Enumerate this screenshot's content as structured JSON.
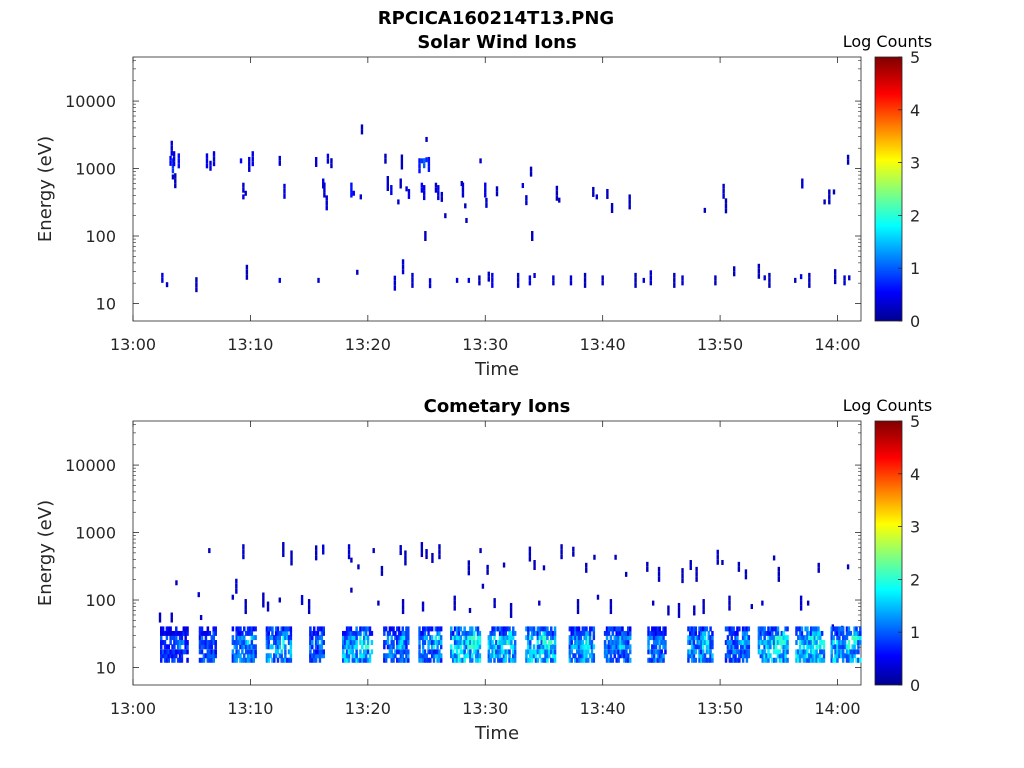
{
  "figure_title": "RPCICA160214T13.PNG",
  "chart_data": [
    {
      "type": "heatmap",
      "title": "Solar Wind Ions",
      "xlabel": "Time",
      "ylabel": "Energy (eV)",
      "x_ticks": [
        "13:00",
        "13:10",
        "13:20",
        "13:30",
        "13:40",
        "13:50",
        "14:00"
      ],
      "y_ticks": [
        "10",
        "100",
        "1000",
        "10000"
      ],
      "x_range_minutes": [
        0,
        62
      ],
      "y_log": true,
      "y_range": [
        5.5,
        45000
      ],
      "colorbar": {
        "label": "Log Counts",
        "ticks": [
          "0",
          "1",
          "2",
          "3",
          "4",
          "5"
        ],
        "range": [
          0,
          5
        ],
        "colormap": "jet"
      },
      "cells": [
        [
          2.5,
          24,
          0.5
        ],
        [
          2.9,
          19,
          0.3
        ],
        [
          3.2,
          1300,
          0.6
        ],
        [
          3.4,
          1100,
          0.9
        ],
        [
          3.5,
          1400,
          0.5
        ],
        [
          3.3,
          2000,
          0.4
        ],
        [
          3.4,
          750,
          0.3
        ],
        [
          3.6,
          660,
          0.3
        ],
        [
          3.9,
          1300,
          0.7
        ],
        [
          5.4,
          19,
          0.3
        ],
        [
          6.3,
          1300,
          0.5
        ],
        [
          6.6,
          1100,
          0.4
        ],
        [
          6.9,
          1400,
          0.5
        ],
        [
          9.2,
          1300,
          0.6
        ],
        [
          9.4,
          520,
          0.4
        ],
        [
          9.4,
          380,
          0.5
        ],
        [
          9.6,
          430,
          0.4
        ],
        [
          9.7,
          29,
          0.3
        ],
        [
          9.9,
          1150,
          0.4
        ],
        [
          10.2,
          1400,
          0.5
        ],
        [
          12.5,
          22,
          0.5
        ],
        [
          12.5,
          1300,
          0.4
        ],
        [
          12.9,
          460,
          0.5
        ],
        [
          15.6,
          1250,
          0.4
        ],
        [
          15.8,
          22,
          0.4
        ],
        [
          16.2,
          600,
          0.5
        ],
        [
          16.3,
          480,
          0.4
        ],
        [
          16.5,
          310,
          0.4
        ],
        [
          16.6,
          1400,
          0.5
        ],
        [
          16.9,
          1200,
          0.3
        ],
        [
          18.6,
          480,
          0.7
        ],
        [
          18.8,
          430,
          0.6
        ],
        [
          19.1,
          29,
          0.3
        ],
        [
          19.4,
          380,
          0.4
        ],
        [
          19.5,
          3800,
          0.3
        ],
        [
          21.5,
          1400,
          0.3
        ],
        [
          21.7,
          600,
          0.4
        ],
        [
          22.0,
          480,
          0.5
        ],
        [
          22.3,
          20,
          0.4
        ],
        [
          22.6,
          320,
          0.4
        ],
        [
          22.8,
          600,
          0.3
        ],
        [
          22.9,
          1250,
          0.3
        ],
        [
          23.0,
          35,
          0.4
        ],
        [
          23.3,
          500,
          0.4
        ],
        [
          23.5,
          420,
          0.5
        ],
        [
          23.8,
          22,
          0.4
        ],
        [
          24.4,
          1100,
          0.7
        ],
        [
          24.6,
          1300,
          0.9
        ],
        [
          24.8,
          1200,
          1.1
        ],
        [
          25.0,
          1350,
          0.8
        ],
        [
          25.2,
          1150,
          0.7
        ],
        [
          24.6,
          520,
          0.6
        ],
        [
          24.8,
          440,
          0.5
        ],
        [
          25.0,
          2700,
          0.3
        ],
        [
          24.9,
          100,
          0.3
        ],
        [
          25.3,
          20,
          0.5
        ],
        [
          25.8,
          520,
          0.4
        ],
        [
          26.0,
          440,
          0.5
        ],
        [
          26.3,
          380,
          0.4
        ],
        [
          26.6,
          200,
          0.3
        ],
        [
          27.6,
          22,
          0.4
        ],
        [
          28.0,
          600,
          0.3
        ],
        [
          28.1,
          480,
          0.4
        ],
        [
          28.3,
          280,
          0.3
        ],
        [
          28.4,
          170,
          0.3
        ],
        [
          28.6,
          22,
          0.5
        ],
        [
          29.5,
          22,
          0.3
        ],
        [
          29.6,
          1300,
          0.4
        ],
        [
          30.0,
          480,
          0.5
        ],
        [
          30.1,
          310,
          0.4
        ],
        [
          30.3,
          25,
          0.3
        ],
        [
          30.6,
          22,
          0.6
        ],
        [
          31.0,
          460,
          0.3
        ],
        [
          32.8,
          22,
          0.4
        ],
        [
          33.2,
          560,
          0.5
        ],
        [
          33.5,
          340,
          0.4
        ],
        [
          33.8,
          22,
          0.6
        ],
        [
          33.9,
          900,
          0.3
        ],
        [
          34.0,
          100,
          0.3
        ],
        [
          34.2,
          26,
          0.4
        ],
        [
          35.8,
          22,
          0.4
        ],
        [
          36.1,
          430,
          0.3
        ],
        [
          36.3,
          340,
          0.3
        ],
        [
          37.3,
          22,
          0.4
        ],
        [
          38.5,
          22,
          0.3
        ],
        [
          39.2,
          450,
          0.3
        ],
        [
          39.5,
          380,
          0.4
        ],
        [
          40.0,
          22,
          0.3
        ],
        [
          40.4,
          420,
          0.3
        ],
        [
          40.8,
          260,
          0.3
        ],
        [
          42.3,
          320,
          0.3
        ],
        [
          42.8,
          22,
          0.3
        ],
        [
          43.5,
          22,
          0.4
        ],
        [
          44.1,
          24,
          0.4
        ],
        [
          46.1,
          22,
          0.3
        ],
        [
          46.8,
          22,
          0.4
        ],
        [
          48.7,
          240,
          0.3
        ],
        [
          49.6,
          22,
          0.3
        ],
        [
          50.3,
          460,
          0.4
        ],
        [
          50.5,
          280,
          0.3
        ],
        [
          51.2,
          30,
          0.3
        ],
        [
          53.3,
          30,
          0.3
        ],
        [
          53.8,
          24,
          0.4
        ],
        [
          54.2,
          22,
          0.3
        ],
        [
          56.4,
          22,
          0.3
        ],
        [
          56.9,
          25,
          0.5
        ],
        [
          57.0,
          600,
          0.4
        ],
        [
          57.6,
          22,
          0.3
        ],
        [
          58.9,
          320,
          0.3
        ],
        [
          59.3,
          380,
          0.3
        ],
        [
          59.7,
          450,
          0.3
        ],
        [
          59.8,
          25,
          0.3
        ],
        [
          60.6,
          22,
          0.4
        ],
        [
          60.9,
          1350,
          0.3
        ],
        [
          61.0,
          24,
          0.3
        ]
      ]
    },
    {
      "type": "heatmap",
      "title": "Cometary Ions",
      "xlabel": "Time",
      "ylabel": "Energy (eV)",
      "x_ticks": [
        "13:00",
        "13:10",
        "13:20",
        "13:30",
        "13:40",
        "13:50",
        "14:00"
      ],
      "y_ticks": [
        "10",
        "100",
        "1000",
        "10000"
      ],
      "x_range_minutes": [
        0,
        62
      ],
      "y_log": true,
      "y_range": [
        5.5,
        45000
      ],
      "colorbar": {
        "label": "Log Counts",
        "ticks": [
          "0",
          "1",
          "2",
          "3",
          "4",
          "5"
        ],
        "range": [
          0,
          5
        ],
        "colormap": "jet"
      },
      "cells": [
        [
          6.5,
          540,
          0.3
        ],
        [
          9.4,
          520,
          0.4
        ],
        [
          12.8,
          560,
          0.3
        ],
        [
          13.5,
          420,
          0.3
        ],
        [
          15.6,
          500,
          0.3
        ],
        [
          16.2,
          560,
          0.4
        ],
        [
          18.4,
          520,
          0.4
        ],
        [
          18.6,
          390,
          0.3
        ],
        [
          19.2,
          310,
          0.3
        ],
        [
          20.5,
          540,
          0.3
        ],
        [
          21.2,
          270,
          0.3
        ],
        [
          22.8,
          550,
          0.3
        ],
        [
          23.2,
          420,
          0.3
        ],
        [
          24.6,
          560,
          0.3
        ],
        [
          25.0,
          480,
          0.3
        ],
        [
          25.5,
          420,
          0.3
        ],
        [
          26.1,
          520,
          0.3
        ],
        [
          28.6,
          300,
          0.3
        ],
        [
          29.6,
          540,
          0.3
        ],
        [
          30.2,
          280,
          0.3
        ],
        [
          31.6,
          330,
          0.3
        ],
        [
          33.8,
          480,
          0.3
        ],
        [
          34.2,
          330,
          0.3
        ],
        [
          35.0,
          300,
          0.3
        ],
        [
          36.5,
          520,
          0.3
        ],
        [
          37.5,
          520,
          0.3
        ],
        [
          38.6,
          300,
          0.3
        ],
        [
          39.3,
          430,
          0.3
        ],
        [
          41.1,
          430,
          0.3
        ],
        [
          42.0,
          240,
          0.3
        ],
        [
          43.8,
          310,
          0.3
        ],
        [
          44.8,
          240,
          0.3
        ],
        [
          46.8,
          230,
          0.3
        ],
        [
          47.5,
          330,
          0.3
        ],
        [
          48.0,
          240,
          0.3
        ],
        [
          49.8,
          430,
          0.4
        ],
        [
          50.2,
          360,
          0.3
        ],
        [
          51.6,
          310,
          0.3
        ],
        [
          52.2,
          240,
          0.3
        ],
        [
          54.6,
          420,
          0.3
        ],
        [
          55.0,
          240,
          0.3
        ],
        [
          58.4,
          300,
          0.3
        ],
        [
          60.9,
          310,
          0.3
        ],
        [
          2.3,
          55,
          0.3
        ],
        [
          3.3,
          55,
          0.3
        ],
        [
          3.7,
          180,
          0.3
        ],
        [
          5.6,
          120,
          0.4
        ],
        [
          5.8,
          55,
          0.3
        ],
        [
          8.5,
          110,
          0.4
        ],
        [
          8.8,
          160,
          0.4
        ],
        [
          9.6,
          80,
          0.3
        ],
        [
          11.1,
          100,
          0.3
        ],
        [
          11.5,
          80,
          0.4
        ],
        [
          12.5,
          100,
          0.3
        ],
        [
          14.4,
          100,
          0.5
        ],
        [
          15.0,
          80,
          0.3
        ],
        [
          18.6,
          140,
          0.3
        ],
        [
          20.9,
          90,
          0.3
        ],
        [
          23.0,
          80,
          0.3
        ],
        [
          24.7,
          80,
          0.4
        ],
        [
          27.4,
          90,
          0.3
        ],
        [
          28.7,
          70,
          0.3
        ],
        [
          29.8,
          160,
          0.3
        ],
        [
          30.8,
          90,
          0.3
        ],
        [
          32.2,
          70,
          0.3
        ],
        [
          34.6,
          90,
          0.3
        ],
        [
          37.9,
          80,
          0.3
        ],
        [
          39.6,
          110,
          0.3
        ],
        [
          40.7,
          80,
          0.3
        ],
        [
          44.3,
          90,
          0.3
        ],
        [
          45.6,
          70,
          0.3
        ],
        [
          46.5,
          70,
          0.3
        ],
        [
          47.8,
          70,
          0.3
        ],
        [
          48.6,
          80,
          0.3
        ],
        [
          50.8,
          90,
          0.3
        ],
        [
          52.7,
          80,
          0.3
        ],
        [
          53.6,
          90,
          0.4
        ],
        [
          56.9,
          90,
          0.4
        ],
        [
          57.5,
          90,
          0.3
        ],
        [
          59.6,
          40,
          0.3
        ],
        [
          60.4,
          35,
          0.3
        ]
      ],
      "bursts": [
        {
          "t": 2.3,
          "w": 2.4,
          "intensity": 0.9
        },
        {
          "t": 5.6,
          "w": 1.5,
          "intensity": 1.0
        },
        {
          "t": 8.4,
          "w": 2.1,
          "intensity": 1.2
        },
        {
          "t": 11.3,
          "w": 2.2,
          "intensity": 1.4
        },
        {
          "t": 15.0,
          "w": 1.3,
          "intensity": 1.1
        },
        {
          "t": 17.8,
          "w": 2.6,
          "intensity": 1.5
        },
        {
          "t": 21.3,
          "w": 2.2,
          "intensity": 1.2
        },
        {
          "t": 24.3,
          "w": 2.0,
          "intensity": 1.3
        },
        {
          "t": 27.0,
          "w": 2.6,
          "intensity": 1.7
        },
        {
          "t": 30.2,
          "w": 2.4,
          "intensity": 1.6
        },
        {
          "t": 33.4,
          "w": 2.6,
          "intensity": 1.6
        },
        {
          "t": 37.1,
          "w": 2.2,
          "intensity": 1.4
        },
        {
          "t": 40.1,
          "w": 2.3,
          "intensity": 1.2
        },
        {
          "t": 43.8,
          "w": 1.6,
          "intensity": 1.2
        },
        {
          "t": 47.2,
          "w": 2.2,
          "intensity": 1.4
        },
        {
          "t": 50.4,
          "w": 2.1,
          "intensity": 1.2
        },
        {
          "t": 53.2,
          "w": 2.6,
          "intensity": 1.6
        },
        {
          "t": 56.4,
          "w": 2.5,
          "intensity": 1.7
        },
        {
          "t": 59.4,
          "w": 2.6,
          "intensity": 1.6
        }
      ]
    }
  ]
}
